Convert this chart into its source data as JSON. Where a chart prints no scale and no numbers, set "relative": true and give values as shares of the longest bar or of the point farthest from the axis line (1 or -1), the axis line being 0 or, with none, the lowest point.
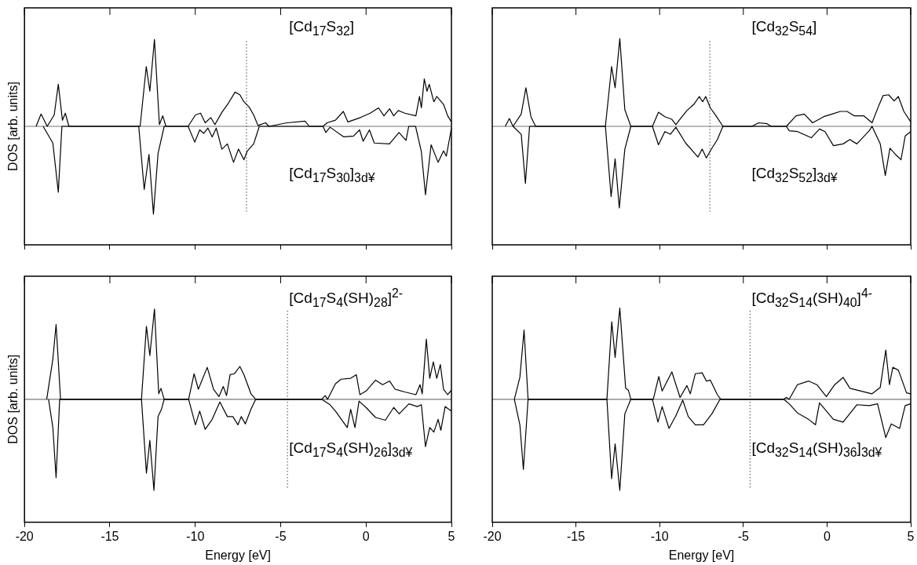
{
  "chart_data": [
    {
      "type": "line",
      "ylabel": "DOS [arb. units]",
      "relative": true,
      "tick_labels": false,
      "xlim": [
        -20,
        5
      ],
      "xticks": [
        -20,
        -15,
        -10,
        -5,
        0,
        5
      ],
      "ref_lines": [
        {
          "axis": "x",
          "value": -7,
          "line_style": "dotted",
          "color": "#444444"
        }
      ],
      "series": [
        {
          "name": "[Cd$_{17}$S$_{32}$]",
          "color": "#000000",
          "x": [
            -19.32,
            -19.03,
            -18.67,
            -18.26,
            -18.02,
            -17.78,
            -17.61,
            -17.4,
            -13.23,
            -12.87,
            -12.66,
            -12.39,
            -12.1,
            -11.9,
            -11.72,
            -10.42,
            -9.99,
            -9.69,
            -9.42,
            -9.09,
            -8.85,
            -8.44,
            -8.04,
            -7.67,
            -7.39,
            -7.15,
            -6.85,
            -6.58,
            -6.33,
            -5.88,
            -5.69,
            -4.63,
            -3.57,
            -3.33,
            -2.52,
            -2.28,
            -1.79,
            -1.33,
            -1.06,
            -0.33,
            0.24,
            0.73,
            1.05,
            1.38,
            1.62,
            1.89,
            2.27,
            2.92,
            3.13,
            3.24,
            3.41,
            3.57,
            3.7,
            3.97,
            4.14,
            4.54,
            4.78,
            5
          ],
          "values": [
            0,
            0.14,
            0,
            0.13,
            0.48,
            0.07,
            0.15,
            0,
            0,
            0.68,
            0.4,
            0.99,
            0.02,
            0.12,
            0,
            0,
            0.13,
            0.15,
            0.04,
            0.1,
            0.02,
            0.16,
            0.27,
            0.39,
            0.36,
            0.28,
            0.22,
            0.13,
            0.01,
            0.04,
            0,
            0.04,
            0.06,
            0,
            0,
            0.04,
            0.07,
            0.17,
            0.05,
            0.1,
            0.15,
            0.21,
            0.12,
            0.2,
            0.12,
            0.18,
            0.15,
            0.12,
            0.34,
            0.21,
            0.54,
            0.4,
            0.48,
            0.28,
            0.34,
            0.25,
            0.12,
            0.05
          ]
        },
        {
          "name": "[Cd$_{17}$S$_{30}$]$_{3d¥}$",
          "color": "#000000",
          "x": [
            -18.91,
            -18.34,
            -18.02,
            -17.81,
            -13.31,
            -12.99,
            -12.71,
            -12.45,
            -12.18,
            -11.82,
            -10.42,
            -10.03,
            -9.74,
            -9.5,
            -9.26,
            -9.01,
            -8.77,
            -8.44,
            -8.12,
            -7.76,
            -7.47,
            -7.15,
            -6.95,
            -6.58,
            -6.25,
            -2.52,
            -2.36,
            -2.11,
            -1.3,
            -0.73,
            -0.38,
            -0.17,
            0.2,
            0.48,
            1.37,
            1.93,
            2.34,
            2.5,
            2.9,
            3.24,
            3.48,
            3.81,
            4.22,
            4.54,
            4.7,
            5
          ],
          "values": [
            0,
            -0.19,
            -0.75,
            0,
            0,
            -0.72,
            -0.32,
            -1,
            -0.31,
            0,
            0,
            -0.18,
            -0.04,
            -0.08,
            -0.02,
            -0.12,
            -0.02,
            -0.26,
            -0.2,
            -0.41,
            -0.26,
            -0.38,
            -0.28,
            -0.2,
            0,
            0,
            -0.07,
            -0.01,
            -0.12,
            -0.11,
            -0.04,
            -0.17,
            -0.04,
            -0.19,
            -0.2,
            -0.07,
            -0.16,
            0,
            0,
            -0.29,
            -0.78,
            -0.21,
            -0.41,
            -0.28,
            -0.34,
            -0.02
          ]
        }
      ]
    },
    {
      "type": "line",
      "relative": true,
      "tick_labels": false,
      "xlim": [
        -20,
        5
      ],
      "xticks": [
        -20,
        -15,
        -10,
        -5,
        0,
        5
      ],
      "ref_lines": [
        {
          "axis": "x",
          "value": -7,
          "line_style": "dotted",
          "color": "#444444"
        }
      ],
      "series": [
        {
          "name": "[Cd$_{32}$S$_{54}$]",
          "color": "#000000",
          "x": [
            -19.22,
            -18.98,
            -18.76,
            -18.27,
            -17.99,
            -17.69,
            -17.41,
            -13.24,
            -12.87,
            -12.66,
            -12.38,
            -12.08,
            -11.72,
            -10.43,
            -10.07,
            -9.69,
            -9.27,
            -9.03,
            -8.83,
            -8.37,
            -7.96,
            -7.63,
            -7.43,
            -7.25,
            -6.97,
            -6.63,
            -6.22,
            -4.49,
            -4.08,
            -3.58,
            -3.34,
            -2.43,
            -1.85,
            -1.36,
            -0.86,
            -0.2,
            0.3,
            0.79,
            1.2,
            1.62,
            2.19,
            2.69,
            3.1,
            3.35,
            3.68,
            4.01,
            4.26,
            4.59,
            5
          ],
          "values": [
            0,
            0.09,
            0,
            0.14,
            0.44,
            0.11,
            0,
            0,
            0.68,
            0.44,
            1,
            0.19,
            0,
            0,
            0.16,
            0.11,
            0.08,
            0.02,
            0.07,
            0.18,
            0.25,
            0.34,
            0.28,
            0.34,
            0.21,
            0.12,
            0,
            0,
            0.04,
            0.03,
            0,
            0,
            0.12,
            0.14,
            0.04,
            0.11,
            0.14,
            0.17,
            0.17,
            0.12,
            0.12,
            0.04,
            0.24,
            0.35,
            0.36,
            0.29,
            0.34,
            0.17,
            0.05
          ]
        },
        {
          "name": "[Cd$_{32}$S$_{52}$]$_{3d¥}$",
          "color": "#000000",
          "x": [
            -18.76,
            -18.27,
            -18.02,
            -17.77,
            -13.24,
            -12.9,
            -12.66,
            -12.41,
            -12.08,
            -11.72,
            -10.43,
            -10.07,
            -9.69,
            -9.36,
            -9.03,
            -8.45,
            -7.71,
            -7.46,
            -7.21,
            -6.88,
            -6.55,
            -6.22,
            -2.43,
            -2.26,
            -1.76,
            -0.94,
            -0.45,
            -0.12,
            0.38,
            0.96,
            1.37,
            1.78,
            2.52,
            2.69,
            3.18,
            3.48,
            3.76,
            4.09,
            4.42,
            4.67,
            5
          ],
          "values": [
            0,
            -0.09,
            -0.65,
            0,
            0,
            -0.8,
            -0.37,
            -0.93,
            -0.26,
            0,
            0,
            -0.21,
            -0.06,
            -0.09,
            -0.01,
            -0.19,
            -0.35,
            -0.26,
            -0.36,
            -0.25,
            -0.15,
            0,
            0,
            -0.05,
            -0.06,
            -0.13,
            -0.03,
            -0.06,
            -0.22,
            -0.2,
            -0.15,
            -0.2,
            -0.05,
            0,
            -0.2,
            -0.56,
            -0.25,
            -0.32,
            -0.38,
            -0.11,
            -0.06
          ]
        }
      ]
    },
    {
      "type": "line",
      "xlabel": "Energy [eV]",
      "ylabel": "DOS [arb. units]",
      "relative": true,
      "tick_labels": "x",
      "xlim": [
        -20,
        5
      ],
      "xticks": [
        -20,
        -15,
        -10,
        -5,
        0,
        5
      ],
      "ref_lines": [
        {
          "axis": "x",
          "value": -4.6,
          "line_style": "dotted",
          "color": "#444444"
        }
      ],
      "series": [
        {
          "name": "[Cd$_{17}$S$_{4}$(SH)$_{28}$]$^{2-}$",
          "color": "#000000",
          "x": [
            -18.7,
            -18.34,
            -18.15,
            -17.89,
            -13.15,
            -12.86,
            -12.66,
            -12.39,
            -12.14,
            -12.01,
            -11.82,
            -10.39,
            -10.07,
            -9.82,
            -9.3,
            -8.93,
            -8.61,
            -8.36,
            -8.17,
            -7.96,
            -7.71,
            -7.39,
            -7.15,
            -6.74,
            -6.46,
            -2.6,
            -2.39,
            -2.25,
            -1.79,
            -1.46,
            -0.9,
            -0.57,
            -0.36,
            0,
            0.56,
            0.97,
            1.38,
            1.7,
            2.27,
            2.92,
            3.16,
            3.29,
            3.53,
            3.73,
            3.94,
            4.14,
            4.35,
            4.54,
            4.78,
            5
          ],
          "values": [
            0,
            0.44,
            0.82,
            0,
            0,
            0.8,
            0.48,
            0.99,
            0.06,
            0.12,
            0,
            0,
            0.28,
            0.11,
            0.35,
            0.11,
            0.03,
            0.14,
            0.04,
            0.27,
            0.28,
            0.36,
            0.27,
            0.06,
            0,
            0,
            0.04,
            0,
            0.17,
            0.22,
            0.23,
            0.27,
            0.05,
            0.09,
            0.21,
            0.16,
            0.2,
            0.11,
            0.08,
            0.05,
            0.16,
            0.06,
            0.66,
            0.23,
            0.41,
            0.23,
            0.38,
            0.11,
            0.05,
            0.1
          ]
        },
        {
          "name": "[Cd$_{17}$S$_{4}$(SH)$_{26}$]$_{3d¥}$",
          "color": "#000000",
          "x": [
            -18.59,
            -18.34,
            -18.15,
            -17.94,
            -13.15,
            -12.86,
            -12.66,
            -12.42,
            -12.18,
            -11.98,
            -11.82,
            -10.39,
            -9.99,
            -9.74,
            -9.42,
            -9.01,
            -8.56,
            -8.12,
            -7.8,
            -7.5,
            -7.31,
            -7.07,
            -6.74,
            -6.46,
            -2.6,
            -2.11,
            -1.79,
            -1.1,
            -0.9,
            -0.65,
            -0.41,
            0,
            0.56,
            1.13,
            1.62,
            1.94,
            2.51,
            3,
            3.24,
            3.48,
            3.73,
            3.97,
            4.22,
            4.38,
            4.63,
            5
          ],
          "values": [
            0,
            -0.31,
            -0.86,
            0,
            0,
            -0.81,
            -0.45,
            -1,
            -0.19,
            -0.11,
            0,
            0,
            -0.28,
            -0.13,
            -0.33,
            -0.22,
            -0.03,
            -0.19,
            -0.19,
            -0.28,
            -0.19,
            -0.27,
            -0.11,
            0,
            0,
            -0.06,
            -0.13,
            -0.31,
            -0.11,
            -0.31,
            -0.02,
            -0.09,
            -0.2,
            -0.23,
            -0.09,
            -0.16,
            -0.05,
            -0.08,
            -0.06,
            -0.52,
            -0.31,
            -0.36,
            -0.22,
            -0.34,
            -0.08,
            -0.13
          ]
        }
      ]
    },
    {
      "type": "line",
      "xlabel": "Energy [eV]",
      "relative": true,
      "tick_labels": "x",
      "xlim": [
        -20,
        5
      ],
      "xticks": [
        -20,
        -15,
        -10,
        -5,
        0,
        5
      ],
      "ref_lines": [
        {
          "axis": "x",
          "value": -4.6,
          "line_style": "dotted",
          "color": "#444444"
        }
      ],
      "series": [
        {
          "name": "[Cd$_{32}$S$_{14}$(SH)$_{40}$]$^{4-}$",
          "color": "#000000",
          "x": [
            -18.68,
            -18.35,
            -18.1,
            -17.86,
            -13.15,
            -12.86,
            -12.66,
            -12.38,
            -12.03,
            -11.87,
            -11.72,
            -10.38,
            -10.05,
            -9.85,
            -9.27,
            -8.78,
            -8.37,
            -8.17,
            -7.87,
            -7.46,
            -7.21,
            -6.97,
            -6.55,
            -6.35,
            -2.59,
            -2.43,
            -2.26,
            -1.77,
            -1.11,
            -0.61,
            -0.04,
            0.46,
            0.96,
            1.37,
            2.03,
            2.69,
            3.18,
            3.51,
            3.73,
            3.93,
            4.26,
            4.75,
            5
          ],
          "values": [
            0,
            0.24,
            0.76,
            0,
            0,
            0.85,
            0.46,
            1,
            0.12,
            0.1,
            0,
            0,
            0.25,
            0.09,
            0.3,
            0.02,
            0.15,
            0.06,
            0.28,
            0.29,
            0.2,
            0.21,
            0.05,
            0,
            0,
            0.02,
            0,
            0.16,
            0.2,
            0.16,
            0.03,
            0.16,
            0.24,
            0.12,
            0.09,
            0.06,
            0.13,
            0.54,
            0.16,
            0.35,
            0.32,
            0.07,
            0.06
          ]
        },
        {
          "name": "[Cd$_{32}$S$_{14}$(SH)$_{36}$]$_{3d¥}$",
          "color": "#000000",
          "x": [
            -18.68,
            -18.35,
            -18.14,
            -17.86,
            -13.15,
            -12.87,
            -12.66,
            -12.38,
            -12.08,
            -11.72,
            -10.43,
            -10.1,
            -9.85,
            -9.44,
            -9.03,
            -8.62,
            -8.29,
            -7.87,
            -7.38,
            -6.88,
            -6.39,
            -2.59,
            -2.26,
            -1.77,
            -1.11,
            -0.69,
            -0.45,
            0.38,
            0.96,
            1.78,
            2.52,
            3.02,
            3.51,
            3.84,
            4.34,
            4.67,
            5
          ],
          "values": [
            0,
            -0.28,
            -0.77,
            0,
            0,
            -0.87,
            -0.49,
            -1,
            -0.16,
            0,
            0,
            -0.25,
            -0.08,
            -0.32,
            -0.18,
            -0.01,
            -0.19,
            -0.28,
            -0.28,
            -0.16,
            0,
            0,
            -0.05,
            -0.15,
            -0.22,
            -0.28,
            -0.04,
            -0.22,
            -0.25,
            -0.06,
            -0.07,
            -0.05,
            -0.42,
            -0.27,
            -0.32,
            -0.07,
            -0.05
          ]
        }
      ]
    }
  ]
}
